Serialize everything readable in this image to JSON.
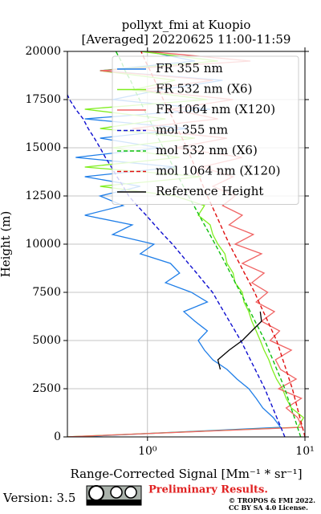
{
  "chart_data": {
    "type": "line",
    "title": "pollyxt_fmi at Kuopio",
    "subtitle": "[Averaged] 20220625 11:00-11:59",
    "x_label": "Range-Corrected Signal [Mm⁻¹ * sr⁻¹]",
    "y_label": "Height (m)",
    "log_x": true,
    "grid": true,
    "legend": "upper right",
    "xlim": [
      0.31,
      10
    ],
    "xticks": [
      {
        "value": 1,
        "label": "10⁰"
      },
      {
        "value": 10,
        "label": "10¹"
      }
    ],
    "ylim": [
      0,
      20000
    ],
    "yticks": [
      0,
      2500,
      5000,
      7500,
      10000,
      12500,
      15000,
      17500,
      20000
    ],
    "y": [
      0,
      500,
      1000,
      1500,
      2000,
      2500,
      3000,
      3500,
      4000,
      4500,
      5000,
      5500,
      6000,
      6500,
      7000,
      7500,
      8000,
      8500,
      9000,
      9500,
      10000,
      10500,
      11000,
      11500,
      12000,
      12500,
      13000,
      13500,
      14000,
      14500,
      15000,
      15500,
      16000,
      16500,
      17000,
      17500,
      18000,
      18500,
      19000,
      19500,
      20000
    ],
    "series": [
      {
        "name": "FR 355 nm",
        "color": "#1f7ee8",
        "dashed": false,
        "values": [
          0.35,
          7.0,
          6.3,
          5.4,
          4.9,
          4.4,
          3.7,
          3.2,
          2.6,
          2.3,
          2.1,
          2.4,
          2.0,
          1.7,
          2.4,
          1.9,
          1.3,
          1.6,
          1.4,
          0.9,
          1.1,
          0.6,
          0.8,
          0.4,
          0.7,
          0.5,
          0.9,
          0.4,
          1.5,
          0.35,
          1.2,
          0.5,
          1.8,
          0.4,
          2.5,
          0.6,
          1.2,
          3.0,
          0.5,
          2.0,
          1.0
        ]
      },
      {
        "name": "FR 532 nm (X6)",
        "color": "#80ee20",
        "dashed": false,
        "values": [
          0.3,
          9.0,
          9.8,
          8.2,
          7.6,
          7.2,
          6.6,
          6.2,
          5.9,
          5.5,
          5.2,
          4.9,
          4.6,
          4.4,
          4.1,
          4.0,
          3.6,
          3.5,
          3.2,
          3.1,
          2.8,
          2.6,
          2.5,
          2.1,
          2.3,
          1.5,
          0.5,
          2.2,
          0.4,
          1.6,
          0.6,
          2.0,
          0.5,
          1.3,
          0.4,
          2.4,
          0.8,
          1.5,
          0.5,
          2.8,
          0.9
        ]
      },
      {
        "name": "FR 1064 nm (X120)",
        "color": "#f06464",
        "dashed": false,
        "values": [
          0.3,
          9.6,
          9.0,
          7.6,
          9.5,
          6.8,
          8.8,
          7.0,
          6.5,
          8.2,
          6.0,
          6.9,
          5.3,
          6.4,
          4.9,
          5.8,
          4.6,
          5.5,
          4.0,
          5.3,
          3.6,
          4.7,
          3.3,
          4.0,
          3.0,
          3.6,
          2.6,
          3.5,
          2.2,
          4.0,
          1.5,
          3.2,
          0.8,
          2.8,
          1.4,
          3.5,
          0.9,
          2.6,
          0.5,
          4.5,
          1.0
        ]
      },
      {
        "name": "mol 355 nm",
        "color": "#1010d0",
        "dashed": true,
        "values": [
          7.45,
          7.03,
          6.62,
          6.25,
          5.89,
          5.56,
          5.18,
          4.83,
          4.5,
          4.2,
          3.91,
          3.6,
          3.31,
          3.05,
          2.81,
          2.59,
          2.3,
          2.05,
          1.82,
          1.62,
          1.44,
          1.26,
          1.11,
          0.98,
          0.86,
          0.76,
          0.7,
          0.64,
          0.59,
          0.54,
          0.5,
          0.46,
          0.42,
          0.39,
          0.35,
          0.32,
          0.3,
          0.27,
          0.25,
          0.22,
          0.2
        ]
      },
      {
        "name": "mol 532 nm (X6)",
        "color": "#10c010",
        "dashed": true,
        "values": [
          9.4,
          8.97,
          8.57,
          8.17,
          7.8,
          7.45,
          7.03,
          6.62,
          6.25,
          5.89,
          5.56,
          5.18,
          4.82,
          4.49,
          4.18,
          3.89,
          3.61,
          3.36,
          3.12,
          2.9,
          2.69,
          2.49,
          2.3,
          2.13,
          1.97,
          1.82,
          1.69,
          1.57,
          1.46,
          1.36,
          1.26,
          1.17,
          1.1,
          1.02,
          0.95,
          0.89,
          0.83,
          0.78,
          0.72,
          0.68,
          0.63
        ]
      },
      {
        "name": "mol 1064 nm (X120)",
        "color": "#e01010",
        "dashed": true,
        "values": [
          10.0,
          9.64,
          9.29,
          8.95,
          8.63,
          8.32,
          7.94,
          7.59,
          7.24,
          6.92,
          6.61,
          6.19,
          5.81,
          5.44,
          5.1,
          4.79,
          4.45,
          4.13,
          3.84,
          3.56,
          3.31,
          3.1,
          2.91,
          2.73,
          2.56,
          2.4,
          2.26,
          2.13,
          2.0,
          1.89,
          1.78,
          1.66,
          1.55,
          1.45,
          1.35,
          1.26,
          1.18,
          1.11,
          1.04,
          0.97,
          0.91
        ]
      },
      {
        "name": "Reference Height",
        "color": "#000000",
        "dashed": false,
        "values": [
          null,
          null,
          null,
          null,
          null,
          null,
          null,
          2.9,
          2.8,
          3.3,
          4.0,
          4.6,
          5.3,
          5.2,
          null,
          null,
          null,
          null,
          null,
          null,
          null,
          null,
          null,
          null,
          null,
          null,
          null,
          null,
          null,
          null,
          null,
          null,
          null,
          null,
          null,
          null,
          null,
          null,
          null,
          null,
          null
        ]
      }
    ]
  },
  "footer": {
    "version": "Version: 3.5",
    "preliminary": "Preliminary Results.",
    "license_1": "© TROPOS & FMI 2022.",
    "license_2": "CC BY SA 4.0 License."
  }
}
